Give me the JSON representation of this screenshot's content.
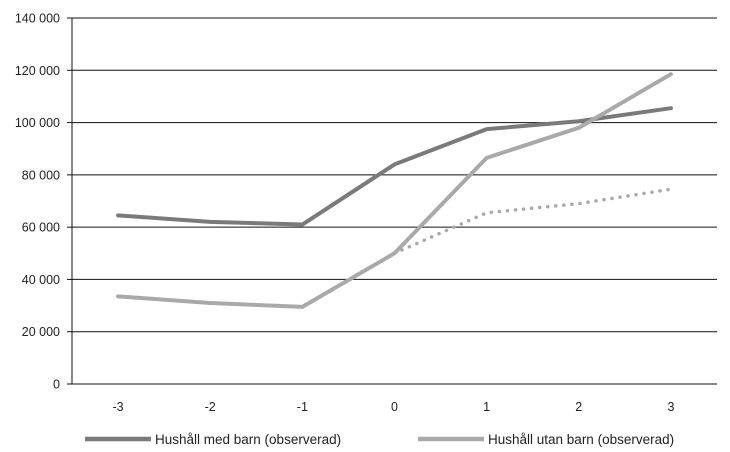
{
  "chart_data": {
    "type": "line",
    "title": "",
    "xlabel": "",
    "ylabel": "",
    "categories": [
      "-3",
      "-2",
      "-1",
      "0",
      "1",
      "2",
      "3"
    ],
    "y_tick_labels": [
      "0",
      "20 000",
      "40 000",
      "60 000",
      "80 000",
      "100 000",
      "120 000",
      "140 000"
    ],
    "ylim": [
      0,
      140000
    ],
    "grid": "horizontal",
    "legend_position": "bottom",
    "series": [
      {
        "name": "Hushåll med barn (observerad)",
        "color": "#7a7a7a",
        "style": "solid",
        "x": [
          -3,
          -2,
          -1,
          0,
          1,
          2,
          3
        ],
        "values": [
          64500,
          62000,
          61000,
          84000,
          97500,
          100500,
          105500
        ]
      },
      {
        "name": "Hushåll utan barn (observerad)",
        "color": "#a9a9a9",
        "style": "solid",
        "x": [
          -3,
          -2,
          -1,
          0,
          1,
          2,
          3
        ],
        "values": [
          33500,
          31000,
          29500,
          50000,
          86500,
          98000,
          118500
        ]
      },
      {
        "name": "",
        "color": "#a9a9a9",
        "style": "dotted",
        "x": [
          0,
          1,
          2,
          3
        ],
        "values": [
          50000,
          65500,
          69000,
          74500
        ]
      }
    ]
  }
}
